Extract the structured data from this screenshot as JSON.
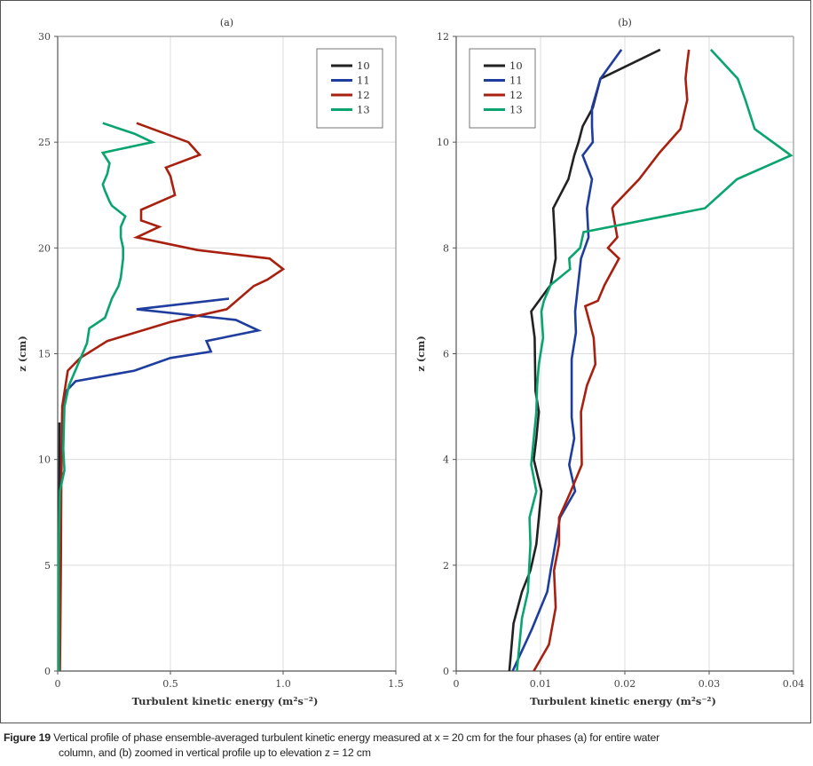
{
  "caption": {
    "label": "Figure 19",
    "line1": "Vertical profile of phase ensemble-averaged turbulent kinetic energy measured at x = 20 cm for the four phases (a) for entire water",
    "line2": "column, and (b) zoomed in vertical profile up to elevation z = 12 cm"
  },
  "colors": {
    "10": "#222222",
    "11": "#1f3d9e",
    "12": "#a8200f",
    "13": "#0aa46e"
  },
  "chart_data": [
    {
      "type": "line",
      "title": "(a)",
      "xlabel": "Turbulent kinetic energy (m²s⁻²)",
      "ylabel": "z (cm)",
      "xlim": [
        0,
        1.5
      ],
      "ylim": [
        0,
        30
      ],
      "xticks": [
        0,
        0.5,
        1.0,
        1.5
      ],
      "xtick_labels": [
        "0",
        "0.5",
        "1.0",
        "1.5"
      ],
      "yticks": [
        0,
        5,
        10,
        15,
        20,
        25,
        30
      ],
      "ytick_labels": [
        "0",
        "5",
        "10",
        "15",
        "20",
        "25",
        "30"
      ],
      "grid": true,
      "legend": {
        "position": "top-right",
        "entries": [
          "10",
          "11",
          "12",
          "13"
        ]
      },
      "series": [
        {
          "name": "10",
          "x": [
            0.005,
            0.006,
            0.007,
            0.008
          ],
          "z": [
            0,
            4,
            8,
            11.75
          ]
        },
        {
          "name": "11",
          "x": [
            0.007,
            0.01,
            0.012,
            0.015,
            0.02,
            0.035,
            0.08,
            0.34,
            0.5,
            0.68,
            0.66,
            0.89,
            0.79,
            0.35,
            0.76
          ],
          "z": [
            0,
            2,
            5,
            9,
            12.2,
            13.2,
            13.7,
            14.2,
            14.8,
            15.1,
            15.6,
            16.1,
            16.6,
            17.1,
            17.6
          ]
        },
        {
          "name": "12",
          "x": [
            0.01,
            0.012,
            0.014,
            0.016,
            0.02,
            0.02,
            0.045,
            0.1,
            0.22,
            0.5,
            0.75,
            0.87,
            0.93,
            1.0,
            0.94,
            0.62,
            0.35,
            0.45,
            0.37,
            0.37,
            0.52,
            0.5,
            0.48,
            0.63,
            0.58,
            0.35
          ],
          "z": [
            0,
            2,
            5,
            9,
            11.5,
            12.5,
            14.2,
            14.8,
            15.6,
            16.5,
            17.1,
            18.2,
            18.5,
            19.0,
            19.5,
            19.9,
            20.5,
            21.0,
            21.3,
            21.8,
            22.5,
            23.4,
            23.8,
            24.4,
            25.0,
            25.9
          ],
          "note": "z values approximate"
        },
        {
          "name": "13",
          "x": [
            0.005,
            0.004,
            0.01,
            0.03,
            0.025,
            0.03,
            0.05,
            0.09,
            0.13,
            0.14,
            0.21,
            0.24,
            0.27,
            0.28,
            0.29,
            0.29,
            0.28,
            0.28,
            0.3,
            0.24,
            0.23,
            0.21,
            0.2,
            0.22,
            0.23,
            0.2,
            0.42,
            0.34,
            0.2
          ],
          "z": [
            0,
            5,
            8.5,
            9.5,
            10.5,
            12.5,
            13.5,
            14.5,
            15.5,
            16.2,
            16.7,
            17.6,
            18.2,
            18.6,
            19.5,
            20.0,
            20.5,
            21.0,
            21.5,
            22.0,
            22.2,
            22.7,
            23.0,
            23.5,
            24.0,
            24.5,
            25.0,
            25.4,
            25.9
          ]
        }
      ]
    },
    {
      "type": "line",
      "title": "(b)",
      "xlabel": "Turbulent kinetic energy (m²s⁻²)",
      "ylabel": "z (cm)",
      "xlim": [
        0,
        0.04
      ],
      "ylim": [
        0,
        12
      ],
      "xticks": [
        0,
        0.01,
        0.02,
        0.03,
        0.04
      ],
      "xtick_labels": [
        "0",
        "0.01",
        "0.02",
        "0.03",
        "0.04"
      ],
      "yticks": [
        0,
        2,
        4,
        6,
        8,
        10,
        12
      ],
      "ytick_labels": [
        "0",
        "2",
        "4",
        "6",
        "8",
        "10",
        "12"
      ],
      "grid": true,
      "legend": {
        "position": "top-left",
        "entries": [
          "10",
          "11",
          "12",
          "13"
        ]
      },
      "series": [
        {
          "name": "10",
          "x": [
            0.0063,
            0.0068,
            0.0078,
            0.0088,
            0.0095,
            0.0101,
            0.0092,
            0.0095,
            0.0098,
            0.0094,
            0.0093,
            0.0089,
            0.0112,
            0.0118,
            0.0117,
            0.0115,
            0.0133,
            0.014,
            0.0145,
            0.015,
            0.0162,
            0.0171,
            0.0242
          ],
          "z": [
            0,
            0.9,
            1.5,
            1.9,
            2.4,
            3.4,
            4.0,
            4.4,
            4.9,
            5.3,
            6.3,
            6.8,
            7.3,
            7.8,
            8.2,
            8.75,
            9.3,
            9.75,
            10.0,
            10.3,
            10.65,
            11.2,
            11.75
          ]
        },
        {
          "name": "11",
          "x": [
            0.0067,
            0.009,
            0.0108,
            0.0112,
            0.0123,
            0.0141,
            0.0134,
            0.014,
            0.0137,
            0.0137,
            0.0142,
            0.0141,
            0.0148,
            0.0157,
            0.0155,
            0.0161,
            0.015,
            0.0162,
            0.0161,
            0.0161,
            0.0171,
            0.0196
          ],
          "z": [
            0,
            0.8,
            1.5,
            1.9,
            2.9,
            3.4,
            3.9,
            4.4,
            4.8,
            5.9,
            6.4,
            6.8,
            7.8,
            8.2,
            8.75,
            9.3,
            9.75,
            10.0,
            10.3,
            10.65,
            11.2,
            11.75
          ]
        },
        {
          "name": "12",
          "x": [
            0.0092,
            0.011,
            0.0118,
            0.0116,
            0.0122,
            0.0122,
            0.0136,
            0.0149,
            0.0148,
            0.0155,
            0.0165,
            0.0163,
            0.0153,
            0.0168,
            0.0176,
            0.0193,
            0.018,
            0.0191,
            0.0185,
            0.0187,
            0.0217,
            0.0241,
            0.0266,
            0.0274,
            0.0272,
            0.0274,
            0.0276
          ],
          "z": [
            0,
            0.5,
            1.2,
            1.9,
            2.4,
            2.9,
            3.4,
            3.9,
            4.9,
            5.4,
            5.8,
            6.3,
            6.9,
            7.0,
            7.3,
            7.8,
            8.0,
            8.2,
            8.75,
            8.8,
            9.3,
            9.8,
            10.25,
            10.8,
            11.2,
            11.5,
            11.75
          ]
        },
        {
          "name": "13",
          "x": [
            0.0072,
            0.0078,
            0.0085,
            0.0088,
            0.0087,
            0.0095,
            0.0089,
            0.0092,
            0.0095,
            0.0096,
            0.0098,
            0.0103,
            0.0101,
            0.0104,
            0.0112,
            0.0135,
            0.0134,
            0.0147,
            0.0151,
            0.0295,
            0.0333,
            0.0397,
            0.0354,
            0.0343,
            0.0334,
            0.0302
          ],
          "z": [
            0,
            1.0,
            1.5,
            2.4,
            2.9,
            3.4,
            3.9,
            4.4,
            4.9,
            5.4,
            5.8,
            6.3,
            6.8,
            7.0,
            7.3,
            7.6,
            7.8,
            8.0,
            8.3,
            8.75,
            9.3,
            9.75,
            10.25,
            10.8,
            11.2,
            11.75
          ]
        }
      ]
    }
  ]
}
